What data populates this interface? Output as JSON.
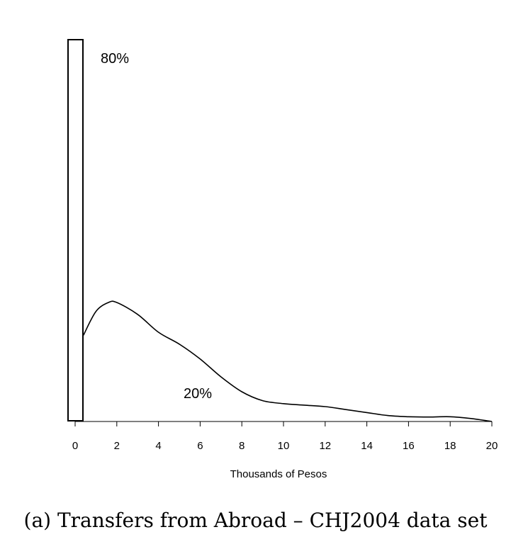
{
  "chart_data": {
    "type": "area",
    "xlabel": "Thousands of Pesos",
    "ylabel": "",
    "x_ticks": [
      0,
      2,
      4,
      6,
      8,
      10,
      12,
      14,
      16,
      18,
      20
    ],
    "xlim": [
      0,
      20
    ],
    "grid": false,
    "legend": "none",
    "point_mass": {
      "x": 0,
      "share_label": "80%"
    },
    "density": {
      "share_label": "20%",
      "x": [
        0.4,
        1.0,
        1.6,
        2.0,
        3.0,
        4.0,
        5.0,
        6.0,
        7.0,
        8.0,
        9.0,
        10.0,
        11.0,
        12.0,
        13.0,
        14.0,
        15.0,
        16.0,
        17.0,
        18.0,
        19.0,
        20.0
      ],
      "y": [
        0.29,
        0.37,
        0.4,
        0.4,
        0.36,
        0.3,
        0.26,
        0.21,
        0.15,
        0.1,
        0.07,
        0.06,
        0.055,
        0.05,
        0.04,
        0.03,
        0.02,
        0.016,
        0.015,
        0.016,
        0.01,
        0.0
      ]
    }
  },
  "caption": "(a) Transfers from Abroad – CHJ2004 data set"
}
